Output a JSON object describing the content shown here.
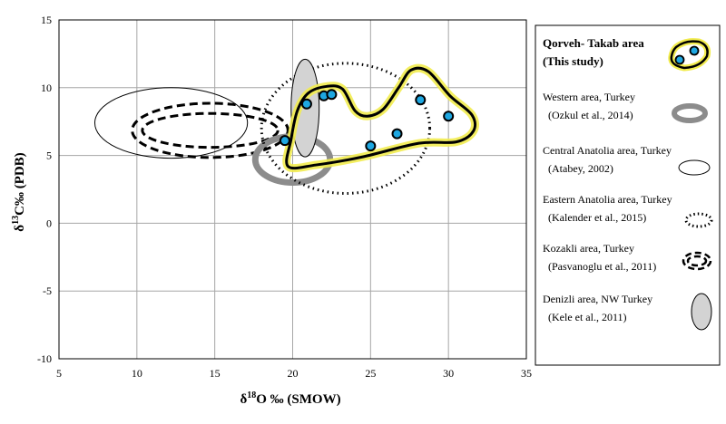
{
  "chart_data": {
    "type": "scatter",
    "x_axis": {
      "label_main": "δ",
      "label_sup": "18",
      "label_rest": "O ‰ (SMOW)",
      "range": [
        5,
        35
      ],
      "ticks": [
        5,
        10,
        15,
        20,
        25,
        30,
        35
      ]
    },
    "y_axis": {
      "label_main": "δ",
      "label_sup": "13",
      "label_rest": "C‰ (PDB)",
      "range": [
        -10,
        15
      ],
      "ticks": [
        15,
        10,
        5,
        0,
        -5,
        -10
      ]
    },
    "grid": true,
    "points": [
      {
        "x": 19.5,
        "y": 6.1
      },
      {
        "x": 20.9,
        "y": 8.8
      },
      {
        "x": 22.0,
        "y": 9.4
      },
      {
        "x": 22.5,
        "y": 9.5
      },
      {
        "x": 25.0,
        "y": 5.7
      },
      {
        "x": 26.7,
        "y": 6.6
      },
      {
        "x": 28.2,
        "y": 9.1
      },
      {
        "x": 30.0,
        "y": 7.9
      }
    ],
    "fields": [
      {
        "id": "western",
        "center": [
          20.0,
          4.7
        ],
        "rx": 2.4,
        "ry": 1.7
      },
      {
        "id": "central",
        "center": [
          12.2,
          7.4
        ],
        "rx": 4.9,
        "ry": 2.6
      },
      {
        "id": "eastern",
        "center": [
          23.4,
          7.0
        ],
        "rx": 5.4,
        "ry": 4.8
      },
      {
        "id": "kozakli",
        "center": [
          14.7,
          6.85
        ],
        "rx": 5.0,
        "ry": 2.0
      },
      {
        "id": "denizli",
        "center": [
          20.8,
          8.5
        ],
        "rx": 0.9,
        "ry": 3.6
      },
      {
        "id": "qorveh",
        "polygon": [
          [
            19.7,
            4.2
          ],
          [
            19.9,
            6.2
          ],
          [
            20.3,
            8.3
          ],
          [
            21.0,
            9.6
          ],
          [
            22.2,
            10.1
          ],
          [
            23.2,
            9.9
          ],
          [
            24.0,
            8.3
          ],
          [
            24.8,
            7.9
          ],
          [
            25.8,
            8.4
          ],
          [
            26.8,
            10.0
          ],
          [
            27.6,
            11.3
          ],
          [
            28.7,
            11.2
          ],
          [
            30.1,
            9.4
          ],
          [
            31.5,
            8.0
          ],
          [
            31.6,
            6.8
          ],
          [
            30.5,
            6.0
          ],
          [
            28.1,
            5.9
          ],
          [
            24.5,
            4.9
          ],
          [
            21.5,
            4.3
          ]
        ]
      }
    ],
    "legend": [
      {
        "id": "qorveh",
        "line1": "Qorveh- Takab area",
        "line2": "(This study)",
        "bold": true
      },
      {
        "id": "western",
        "line1": "Western area, Turkey",
        "line2": "(Ozkul et al., 2014)"
      },
      {
        "id": "central",
        "line1": "Central Anatolia area, Turkey",
        "line2": "(Atabey, 2002)"
      },
      {
        "id": "eastern",
        "line1": "Eastern Anatolia area, Turkey",
        "line2": "(Kalender et al., 2015)"
      },
      {
        "id": "kozakli",
        "line1": "Kozakli area, Turkey",
        "line2": "(Pasvanoglu et al., 2011)"
      },
      {
        "id": "denizli",
        "line1": "Denizli area, NW Turkey",
        "line2": "(Kele et al., 2011)"
      }
    ],
    "legend_placement": "right"
  },
  "colors": {
    "point_fill": "#1ea7e1",
    "highlight": "#f2ec4f",
    "western_ring": "#8c8c8c",
    "denizli_fill": "#d3d3d3",
    "grid": "#a6a6a6"
  }
}
